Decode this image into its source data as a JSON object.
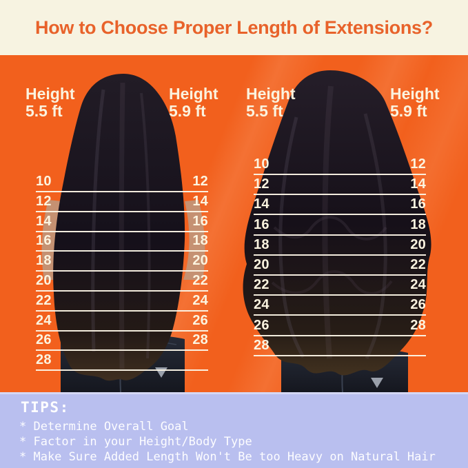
{
  "header": {
    "title": "How to Choose Proper Length of Extensions?"
  },
  "panels": [
    {
      "name": "straight-hair",
      "height_label_left": {
        "word": "Height",
        "value": "5.5 ft"
      },
      "height_label_right": {
        "word": "Height",
        "value": "5.9 ft"
      },
      "rows": [
        {
          "left": "10",
          "right": "12"
        },
        {
          "left": "12",
          "right": "14"
        },
        {
          "left": "14",
          "right": "16"
        },
        {
          "left": "16",
          "right": "18"
        },
        {
          "left": "18",
          "right": "20"
        },
        {
          "left": "20",
          "right": "22"
        },
        {
          "left": "22",
          "right": "24"
        },
        {
          "left": "24",
          "right": "26"
        },
        {
          "left": "26",
          "right": "28"
        },
        {
          "left": "28",
          "right": ""
        }
      ]
    },
    {
      "name": "wavy-hair",
      "height_label_left": {
        "word": "Height",
        "value": "5.5 ft"
      },
      "height_label_right": {
        "word": "Height",
        "value": "5.9 ft"
      },
      "rows": [
        {
          "left": "10",
          "right": "12"
        },
        {
          "left": "12",
          "right": "14"
        },
        {
          "left": "14",
          "right": "16"
        },
        {
          "left": "16",
          "right": "18"
        },
        {
          "left": "18",
          "right": "20"
        },
        {
          "left": "20",
          "right": "22"
        },
        {
          "left": "22",
          "right": "24"
        },
        {
          "left": "24",
          "right": "26"
        },
        {
          "left": "26",
          "right": "28"
        },
        {
          "left": "28",
          "right": ""
        }
      ]
    }
  ],
  "tips": {
    "title": "TIPS:",
    "items": [
      "* Determine Overall Goal",
      "* Factor in your Height/Body Type",
      "* Make Sure Added Length Won't Be too Heavy on Natural Hair"
    ]
  },
  "colors": {
    "banner_cream": "#F7F3E1",
    "title_orange": "#E8622A",
    "background_orange": "#F2601D",
    "tips_lavender": "#B9BFEF",
    "text_cream": "#FCF4E0"
  }
}
